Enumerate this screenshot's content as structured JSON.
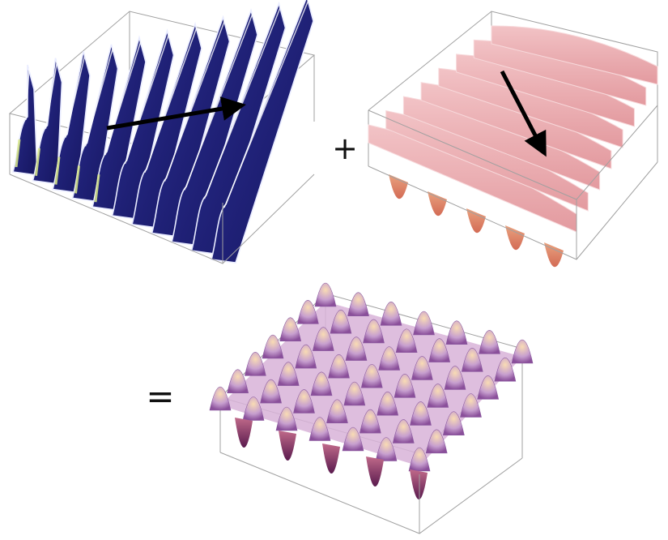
{
  "diagram": {
    "operators": {
      "plus": "+",
      "equals": "="
    },
    "panels": [
      {
        "id": "wave-1",
        "role": "first plane wave",
        "colormap": "blue-yellow",
        "wave_fronts": 11,
        "has_arrow": true
      },
      {
        "id": "wave-2",
        "role": "second plane wave",
        "colormap": "pink",
        "wave_fronts": 8,
        "has_arrow": true
      },
      {
        "id": "sum",
        "role": "superposition result",
        "colormap": "purple-orange",
        "peak_grid": [
          7,
          7
        ],
        "has_arrow": false
      }
    ],
    "colors": {
      "wave1_dark": "#1c1c7a",
      "wave1_mid": "#3b3fa8",
      "wave1_light": "#c9ccf2",
      "wave1_accent": "#d9e98a",
      "wave2_face": "#e6a7ad",
      "wave2_shade": "#d97a6a",
      "sum_light": "#f7d2a8",
      "sum_mid": "#c9a0cf",
      "sum_dark": "#7a2a6a",
      "box_edge": "#9a9a9a",
      "arrow": "#000000"
    }
  }
}
